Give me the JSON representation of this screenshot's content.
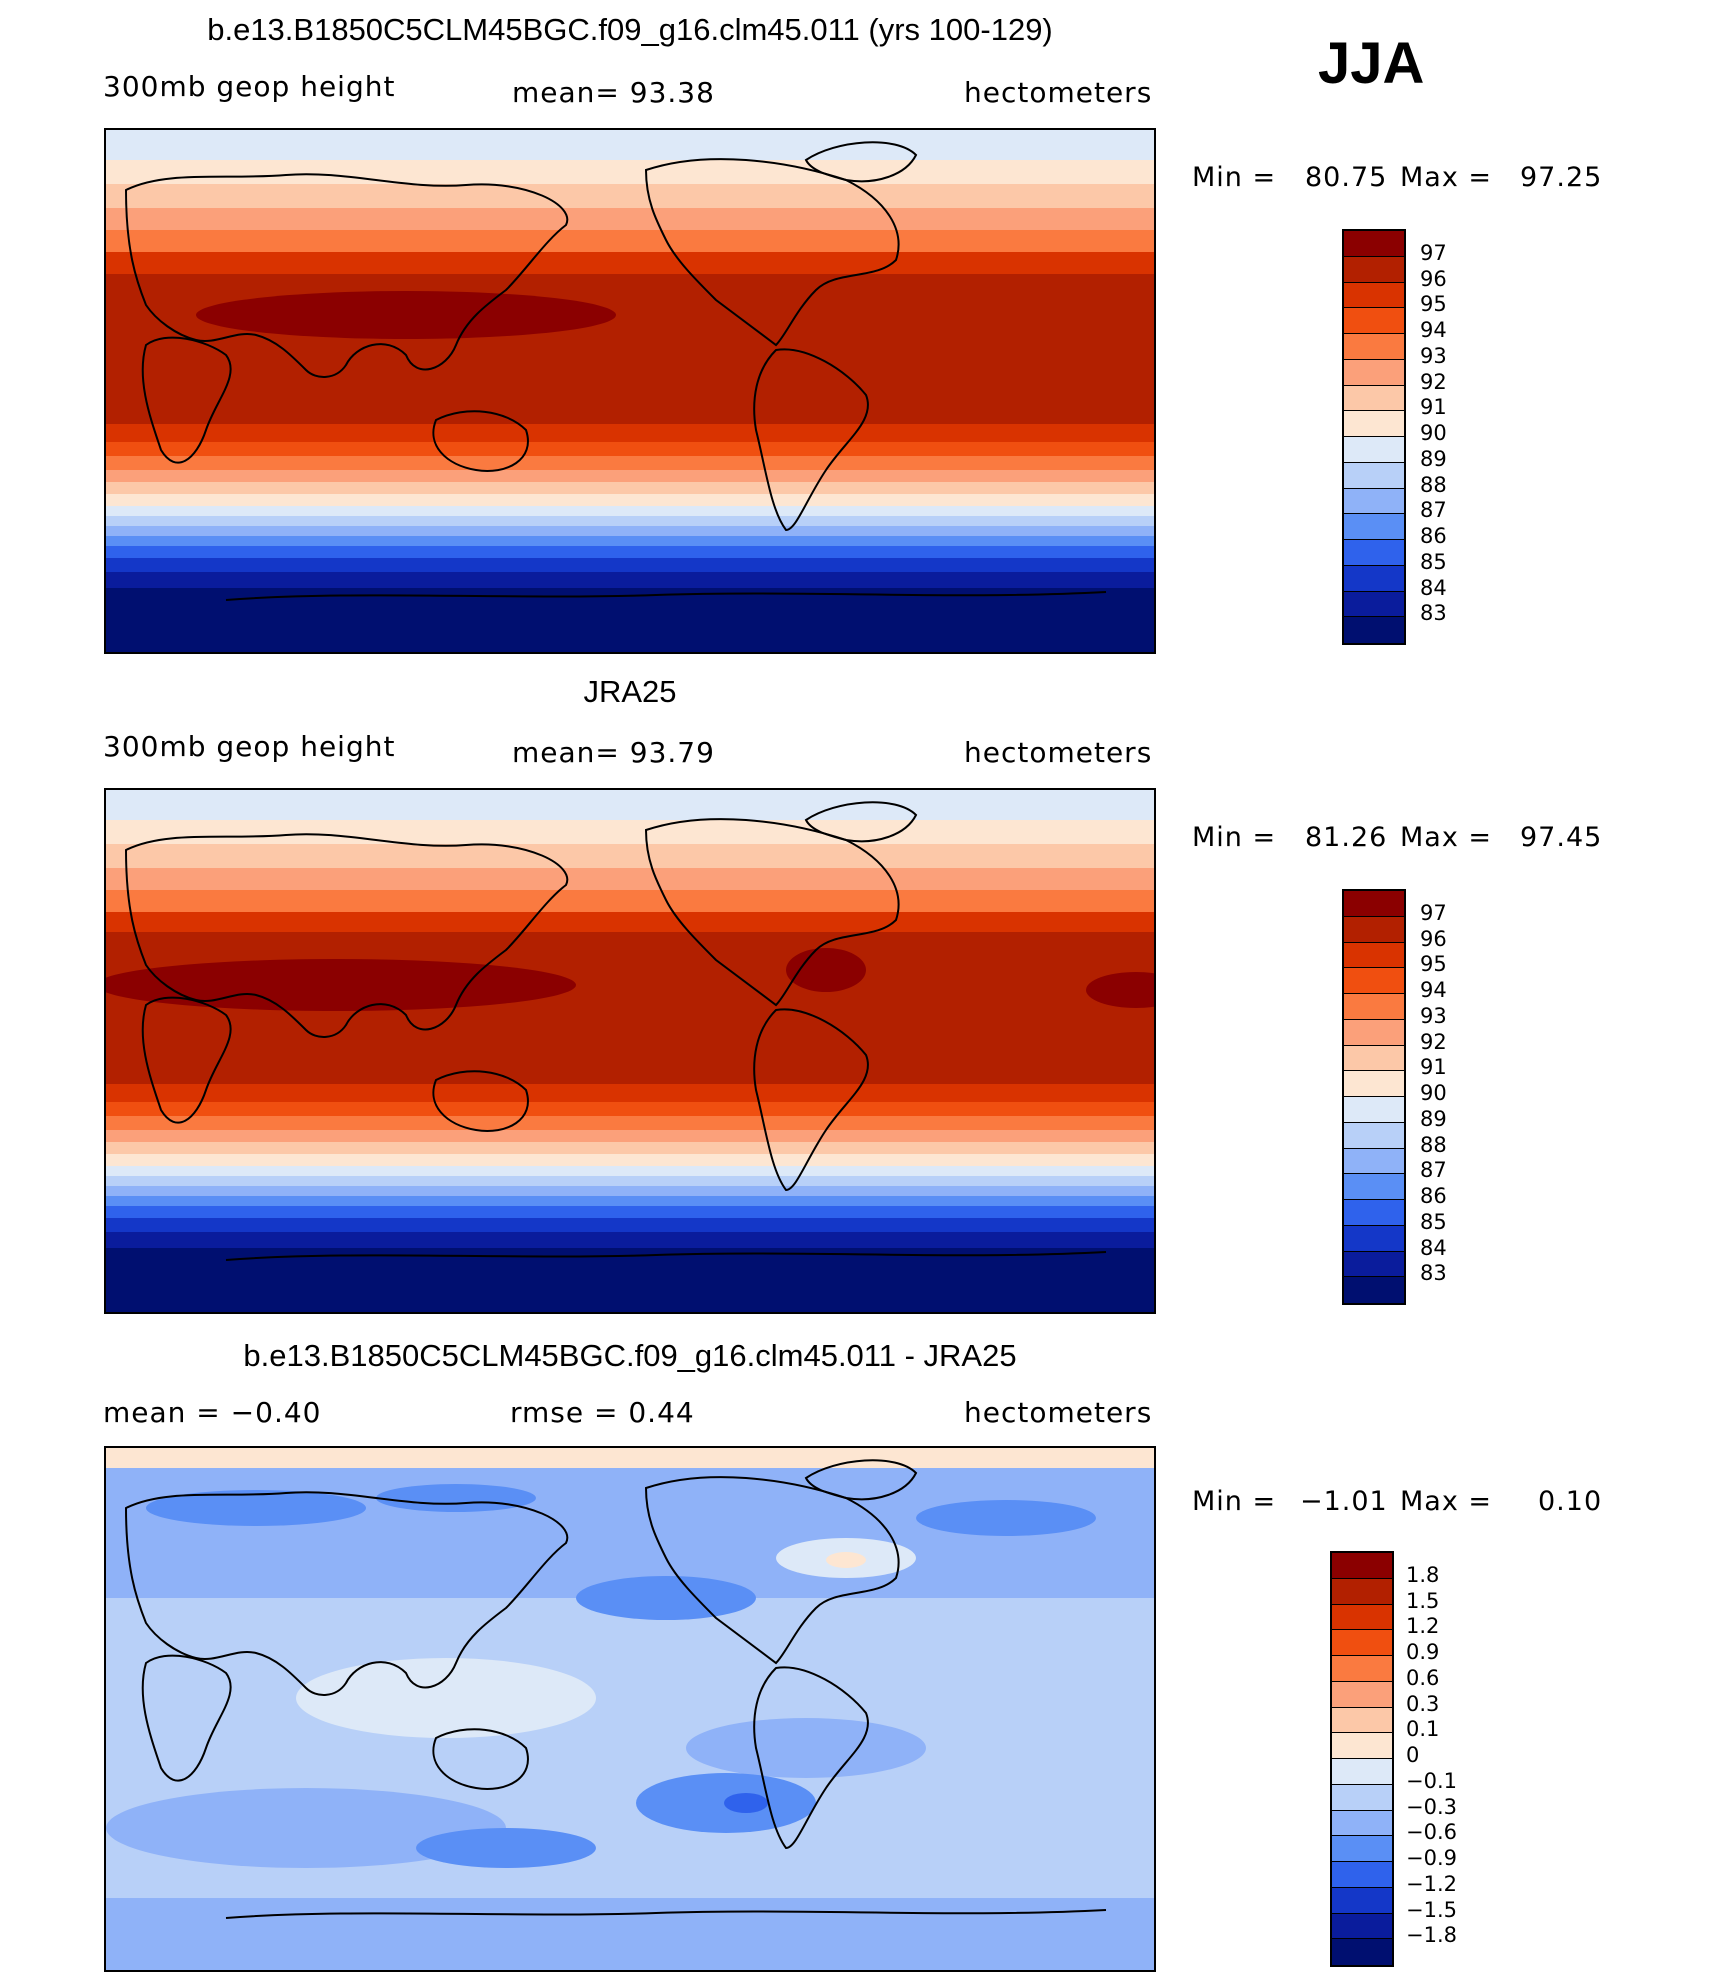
{
  "season": "JJA",
  "units": "hectometers",
  "panels": [
    {
      "title": "b.e13.B1850C5CLM45BGC.f09_g16.clm45.011 (yrs 100-129)",
      "left_label": "300mb  geop  height",
      "center_label": "mean=   93.38",
      "right_label": "hectometers",
      "min_label": "Min  =",
      "min_value": "80.75",
      "max_label": "Max  =",
      "max_value": "97.25",
      "map_name": "model-300mb-geopotential-height-map"
    },
    {
      "title": "JRA25",
      "left_label": "300mb  geop  height",
      "center_label": "mean=   93.79",
      "right_label": "hectometers",
      "min_label": "Min  =",
      "min_value": "81.26",
      "max_label": "Max  =",
      "max_value": "97.45",
      "map_name": "jra25-300mb-geopotential-height-map"
    },
    {
      "title": "b.e13.B1850C5CLM45BGC.f09_g16.clm45.011 - JRA25",
      "left_label": "mean  =    −0.40",
      "center_label": "rmse  =     0.44",
      "right_label": "hectometers",
      "min_label": "Min  =",
      "min_value": "−1.01",
      "max_label": "Max  =",
      "max_value": "0.10",
      "map_name": "difference-map"
    }
  ],
  "colorbar_levels": [
    "97",
    "96",
    "95",
    "94",
    "93",
    "92",
    "91",
    "90",
    "89",
    "88",
    "87",
    "86",
    "85",
    "84",
    "83"
  ],
  "colorbar_colors": [
    "#8b0000",
    "#b22000",
    "#d93300",
    "#f04f10",
    "#fa7a40",
    "#fba07a",
    "#fcc8a8",
    "#fde6d2",
    "#dde9f8",
    "#b8d0f8",
    "#8fb2f8",
    "#5a8ff5",
    "#2f62ec",
    "#1437c8",
    "#0a1c9c",
    "#000f70"
  ],
  "diff_colorbar_levels": [
    "1.8",
    "1.5",
    "1.2",
    "0.9",
    "0.6",
    "0.3",
    "0.1",
    "0",
    "−0.1",
    "−0.3",
    "−0.6",
    "−0.9",
    "−1.2",
    "−1.5",
    "−1.8"
  ],
  "diff_colorbar_colors": [
    "#8b0000",
    "#b22000",
    "#d93300",
    "#f04f10",
    "#fa7a40",
    "#fba07a",
    "#fcc8a8",
    "#fde6d2",
    "#dde9f8",
    "#b8d0f8",
    "#8fb2f8",
    "#5a8ff5",
    "#2f62ec",
    "#1437c8",
    "#0a1c9c",
    "#000f70"
  ]
}
